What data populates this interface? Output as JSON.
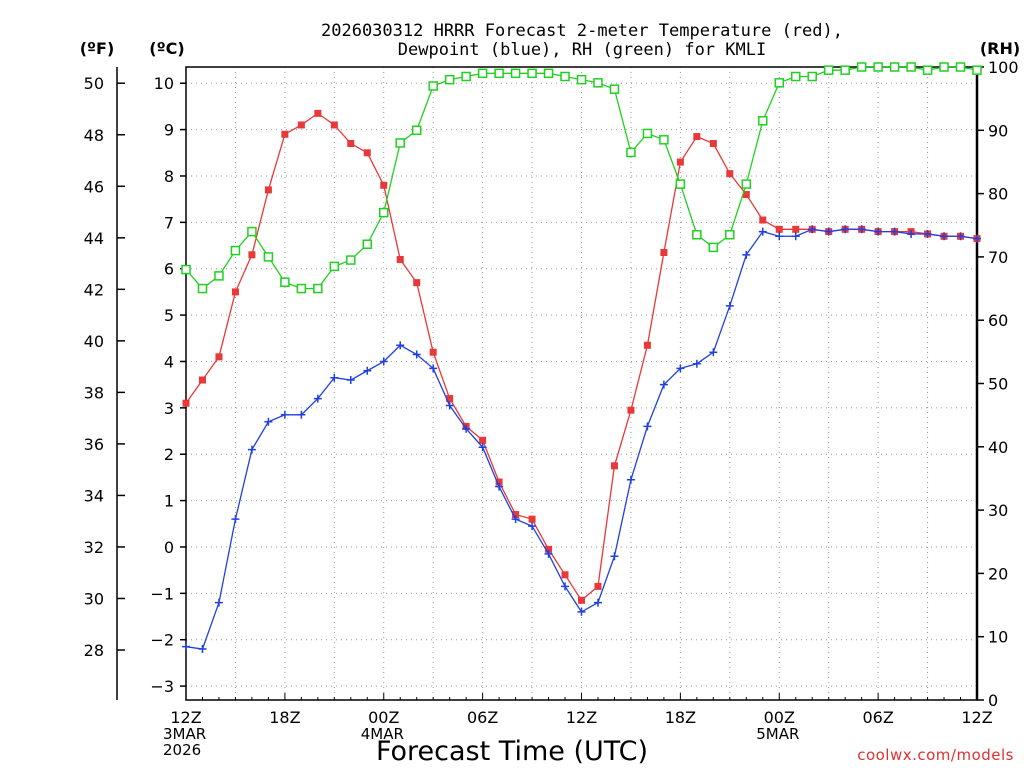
{
  "chart_data": {
    "type": "line",
    "title_line1": "2026030312 HRRR Forecast 2-meter Temperature (red),",
    "title_line2": "Dewpoint (blue), RH (green) for KMLI",
    "xlabel": "Forecast Time (UTC)",
    "unit_f": "(ºF)",
    "unit_c": "(ºC)",
    "unit_rh": "(RH)",
    "watermark": "coolwx.com/models",
    "x_start": 0,
    "x_end": 48,
    "x_ticks": [
      {
        "hour": 0,
        "lines": [
          "12Z",
          "3MAR",
          "2026"
        ]
      },
      {
        "hour": 6,
        "lines": [
          "18Z"
        ]
      },
      {
        "hour": 12,
        "lines": [
          "00Z",
          "4MAR"
        ]
      },
      {
        "hour": 18,
        "lines": [
          "06Z"
        ]
      },
      {
        "hour": 24,
        "lines": [
          "12Z"
        ]
      },
      {
        "hour": 30,
        "lines": [
          "18Z"
        ]
      },
      {
        "hour": 36,
        "lines": [
          "00Z",
          "5MAR"
        ]
      },
      {
        "hour": 42,
        "lines": [
          "06Z"
        ]
      },
      {
        "hour": 48,
        "lines": [
          "12Z"
        ]
      }
    ],
    "celsius_range": [
      -3.3,
      10.35
    ],
    "celsius_ticks": [
      "-3",
      "-2",
      "-1",
      "0",
      "1",
      "2",
      "3",
      "4",
      "5",
      "6",
      "7",
      "8",
      "9",
      "10"
    ],
    "fahrenheit_ticks": [
      "28",
      "30",
      "32",
      "34",
      "36",
      "38",
      "40",
      "42",
      "44",
      "46",
      "48",
      "50"
    ],
    "rh_range": [
      0,
      100
    ],
    "rh_ticks": [
      "0",
      "10",
      "20",
      "30",
      "40",
      "50",
      "60",
      "70",
      "80",
      "90",
      "100"
    ],
    "series": [
      {
        "name": "Temperature",
        "unit": "C",
        "color": "#e83838",
        "marker": "filled-square",
        "values": [
          3.1,
          3.6,
          4.1,
          5.5,
          6.3,
          7.7,
          8.9,
          9.1,
          9.35,
          9.1,
          8.7,
          8.5,
          7.8,
          6.2,
          5.7,
          4.2,
          3.2,
          2.6,
          2.3,
          1.4,
          0.7,
          0.6,
          -0.05,
          -0.6,
          -1.15,
          -0.85,
          1.75,
          2.95,
          4.35,
          6.35,
          8.3,
          8.85,
          8.7,
          8.05,
          7.6,
          7.05,
          6.85,
          6.85,
          6.85,
          6.8,
          6.85,
          6.85,
          6.8,
          6.8,
          6.8,
          6.75,
          6.7,
          6.7,
          6.65
        ]
      },
      {
        "name": "Dewpoint",
        "unit": "C",
        "color": "#2040e0",
        "marker": "plus",
        "values": [
          -2.15,
          -2.2,
          -1.2,
          0.6,
          2.1,
          2.7,
          2.85,
          2.85,
          3.2,
          3.65,
          3.6,
          3.8,
          4.0,
          4.35,
          4.15,
          3.85,
          3.05,
          2.55,
          2.15,
          1.3,
          0.6,
          0.45,
          -0.15,
          -0.85,
          -1.4,
          -1.2,
          -0.2,
          1.45,
          2.6,
          3.5,
          3.85,
          3.95,
          4.2,
          5.2,
          6.3,
          6.8,
          6.7,
          6.7,
          6.85,
          6.8,
          6.85,
          6.85,
          6.8,
          6.8,
          6.75,
          6.75,
          6.7,
          6.7,
          6.65
        ]
      },
      {
        "name": "RH",
        "unit": "%",
        "color": "#20d020",
        "marker": "open-square",
        "values": [
          68,
          65,
          67,
          71,
          74,
          70,
          66,
          65,
          65,
          68.5,
          69.5,
          72,
          77,
          88,
          90,
          97,
          98,
          98.5,
          99,
          99,
          99,
          99,
          99,
          98.5,
          98,
          97.5,
          96.5,
          86.5,
          89.5,
          88.5,
          81.5,
          73.5,
          71.5,
          73.5,
          81.5,
          91.5,
          97.5,
          98.5,
          98.5,
          99.5,
          99.5,
          100,
          100,
          100,
          100,
          99.5,
          100,
          100,
          99.5
        ]
      }
    ]
  }
}
